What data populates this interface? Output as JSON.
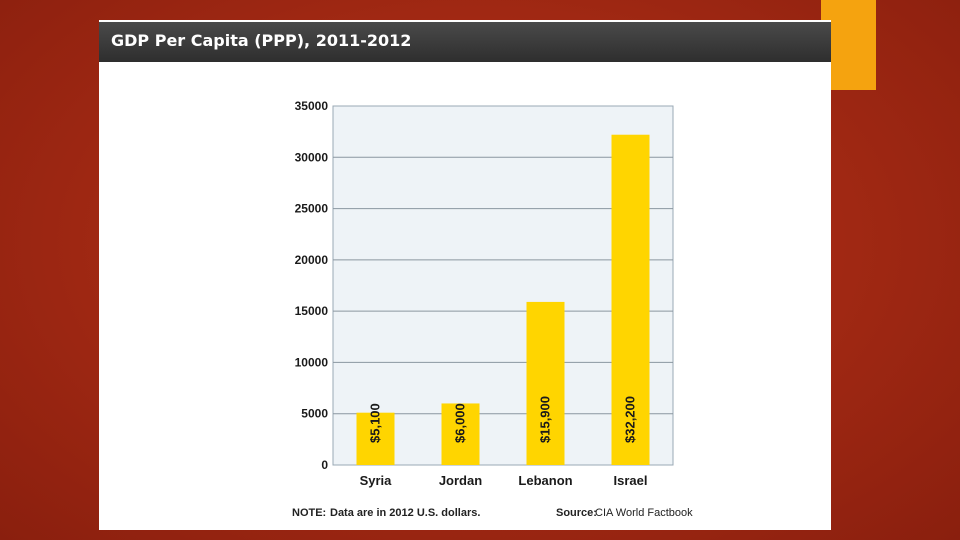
{
  "slide": {
    "title": "GDP Per Capita (PPP), 2011-2012",
    "note_label": "NOTE:",
    "note_text": "Data are in 2012 U.S. dollars.",
    "source_label": "Source:",
    "source_text": "CIA World Factbook"
  },
  "colors": {
    "background": "#a52a14",
    "accent": "#f5a30f",
    "bar": "#ffd500",
    "plot_bg": "#eef3f7",
    "title_bar": "#3a3a3a"
  },
  "chart_data": {
    "type": "bar",
    "title": "GDP Per Capita (PPP), 2011-2012",
    "categories": [
      "Syria",
      "Jordan",
      "Lebanon",
      "Israel"
    ],
    "values": [
      5100,
      6000,
      15900,
      32200
    ],
    "data_labels": [
      "$5,100",
      "$6,000",
      "$15,900",
      "$32,200"
    ],
    "ylim": [
      0,
      35000
    ],
    "yticks": [
      0,
      5000,
      10000,
      15000,
      20000,
      25000,
      30000,
      35000
    ],
    "ytick_labels": [
      "0",
      "5000",
      "10000",
      "15000",
      "20000",
      "25000",
      "30000",
      "35000"
    ],
    "grid": true,
    "xlabel": "",
    "ylabel": ""
  }
}
